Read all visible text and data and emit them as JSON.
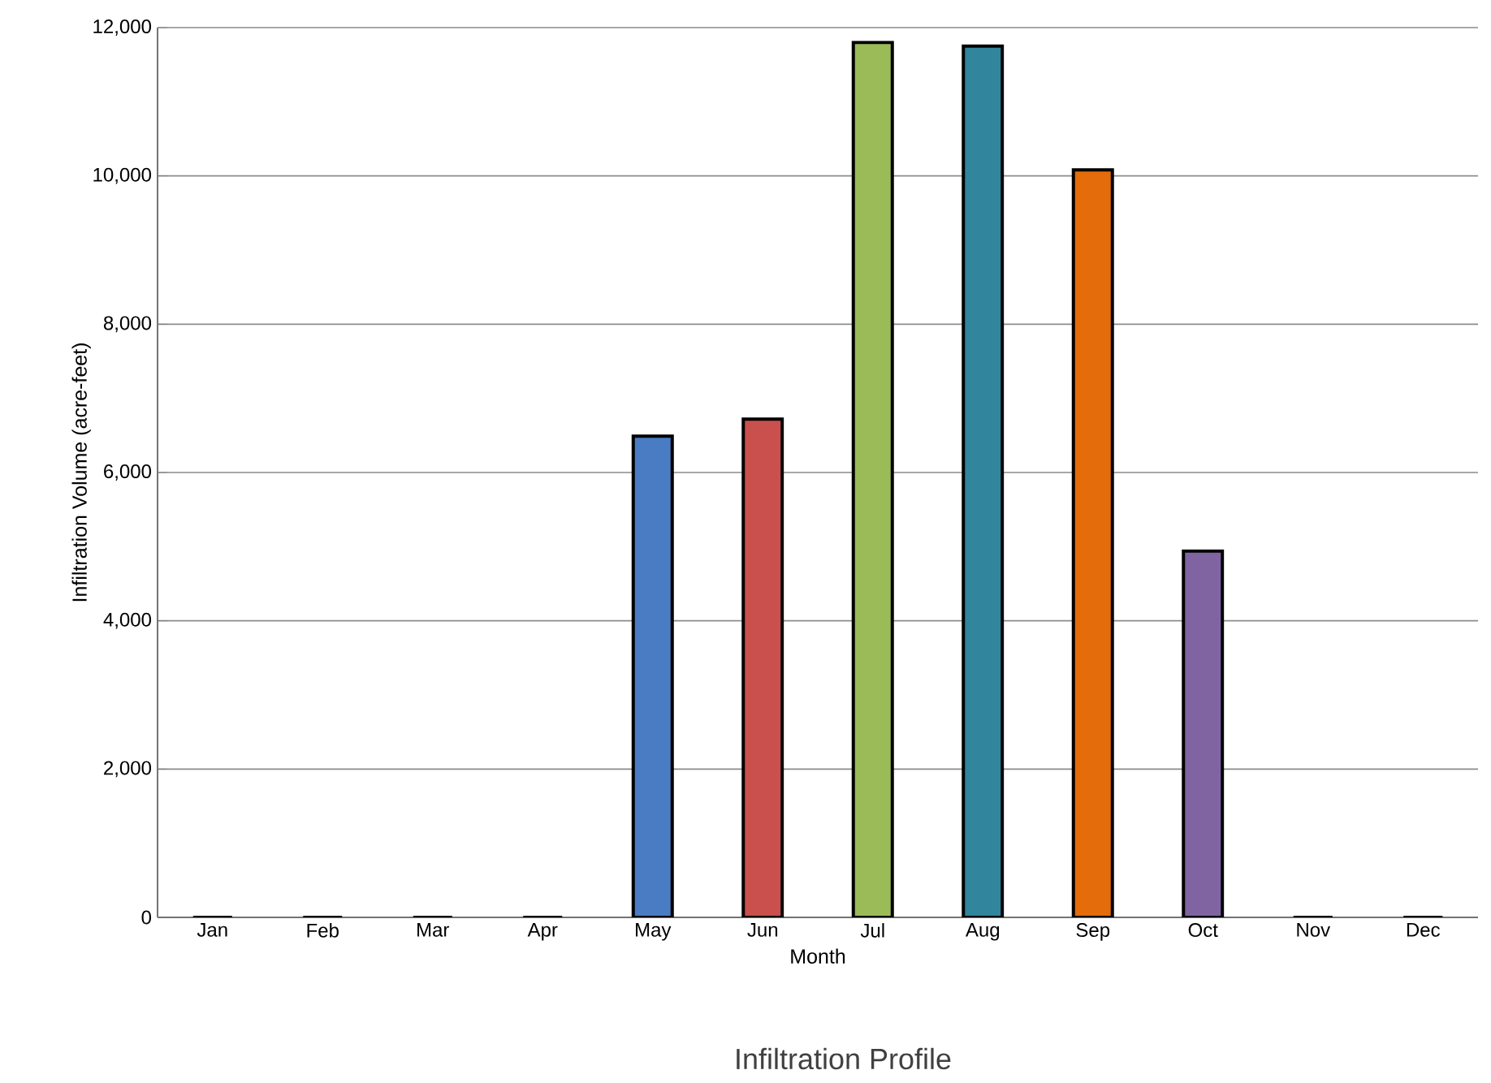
{
  "chart_data": {
    "type": "bar",
    "title": "Infiltration Profile",
    "xlabel": "Month",
    "ylabel": "Infiltration Volume (acre-feet)",
    "categories": [
      "Jan",
      "Feb",
      "Mar",
      "Apr",
      "May",
      "Jun",
      "Jul",
      "Aug",
      "Sep",
      "Oct",
      "Nov",
      "Dec"
    ],
    "values": [
      0,
      0,
      0,
      0,
      6490,
      6720,
      11800,
      11750,
      10080,
      4940,
      0,
      0
    ],
    "colors": [
      "#4a7cc4",
      "#4a7cc4",
      "#4a7cc4",
      "#4a7cc4",
      "#4a7cc4",
      "#c9504d",
      "#9bbb59",
      "#31859c",
      "#e46c0a",
      "#8064a2",
      "#4a7cc4",
      "#4a7cc4"
    ],
    "ylim": [
      0,
      12000
    ],
    "yticks": [
      {
        "value": 0,
        "label": "0"
      },
      {
        "value": 2000,
        "label": "2,000"
      },
      {
        "value": 4000,
        "label": "4,000"
      },
      {
        "value": 6000,
        "label": "6,000"
      },
      {
        "value": 8000,
        "label": "8,000"
      },
      {
        "value": 10000,
        "label": "10,000"
      },
      {
        "value": 12000,
        "label": "12,000"
      }
    ],
    "grid": "y"
  }
}
